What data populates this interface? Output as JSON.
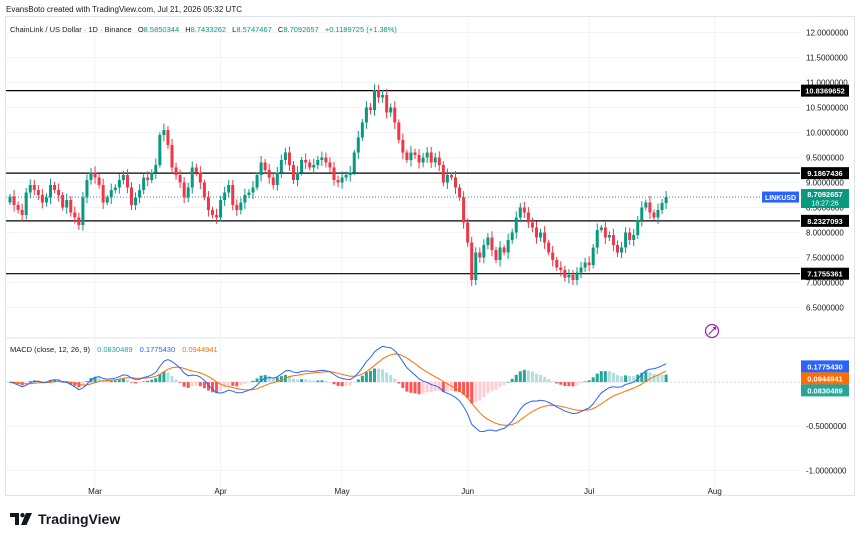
{
  "header": {
    "credit": "EvansBoto created with TradingView.com, Jul 21, 2026 05:32 UTC"
  },
  "legend": {
    "symbol": "ChainLink / US Dollar · 1D · Binance",
    "o_label": "O",
    "o": "8.5850344",
    "h_label": "H",
    "h": "8.7433262",
    "l_label": "L",
    "l": "8.5747467",
    "c_label": "C",
    "c": "8.7092657",
    "change": "+0.1189725 (+1.38%)"
  },
  "macd_legend": {
    "label": "MACD (close, 12, 26, 9)",
    "v1": "0.0830489",
    "v2": "0.1775430",
    "v3": "0.0944941"
  },
  "footer": {
    "brand": "TradingView"
  },
  "colors": {
    "up": "#089981",
    "down": "#f23645",
    "macd": "#2962ff",
    "signal": "#ff6d00",
    "hist_up_strong": "#26a69a",
    "hist_up_weak": "#b2dfdb",
    "hist_down_strong": "#ff5252",
    "hist_down_weak": "#ffcdd2",
    "current": "#2962ff",
    "level": "#000000"
  },
  "chart_data": [
    {
      "type": "candlestick",
      "title": "ChainLink / US Dollar · 1D · Binance",
      "ylim": [
        6.25,
        12.25
      ],
      "y_ticks": [
        "12.0000000",
        "11.5000000",
        "11.0000000",
        "10.5000000",
        "10.0000000",
        "9.5000000",
        "9.0000000",
        "8.5000000",
        "8.0000000",
        "7.5000000",
        "7.0000000",
        "6.5000000"
      ],
      "y_tick_values": [
        12.0,
        11.5,
        11.0,
        10.5,
        10.0,
        9.5,
        9.0,
        8.5,
        8.0,
        7.5,
        7.0,
        6.5
      ],
      "x_ticks": [
        "Mar",
        "Apr",
        "May",
        "Jun",
        "Jul",
        "Aug"
      ],
      "x_tick_days": [
        21,
        52,
        82,
        113,
        143,
        174
      ],
      "horizontal_levels": [
        {
          "label": "10.8369652",
          "value": 10.837
        },
        {
          "label": "9.1867436",
          "value": 9.187
        },
        {
          "label": "8.2327093",
          "value": 8.233
        },
        {
          "label": "7.1755361",
          "value": 7.176
        }
      ],
      "current_price": {
        "symbol": "LINKUSD",
        "label": "8.7092657",
        "countdown": "18:27:26",
        "value": 8.709
      },
      "close": [
        8.72,
        8.55,
        8.45,
        8.35,
        8.8,
        8.95,
        8.85,
        8.75,
        8.6,
        8.7,
        8.95,
        8.85,
        8.75,
        8.5,
        8.65,
        8.4,
        8.3,
        8.15,
        8.7,
        9.05,
        9.2,
        9.1,
        8.95,
        8.6,
        8.7,
        8.85,
        8.9,
        9.05,
        9.15,
        8.9,
        8.55,
        8.7,
        8.85,
        9.1,
        9.05,
        9.2,
        9.35,
        9.95,
        10.05,
        9.75,
        9.3,
        9.15,
        9.0,
        8.7,
        8.9,
        9.3,
        9.2,
        9.0,
        8.7,
        8.45,
        8.35,
        8.3,
        8.65,
        8.8,
        8.95,
        8.55,
        8.45,
        8.6,
        8.75,
        8.8,
        8.9,
        9.15,
        9.4,
        9.25,
        9.1,
        8.95,
        9.2,
        9.45,
        9.6,
        9.35,
        9.05,
        9.2,
        9.45,
        9.4,
        9.3,
        9.35,
        9.45,
        9.5,
        9.4,
        9.3,
        9.05,
        9.0,
        9.1,
        9.15,
        9.2,
        9.6,
        9.9,
        10.2,
        10.5,
        10.45,
        10.85,
        10.7,
        10.75,
        10.4,
        10.5,
        10.2,
        9.85,
        9.6,
        9.45,
        9.6,
        9.55,
        9.4,
        9.5,
        9.6,
        9.4,
        9.5,
        9.35,
        9.0,
        9.15,
        9.1,
        8.9,
        8.7,
        8.2,
        7.8,
        7.05,
        7.6,
        7.5,
        7.75,
        7.9,
        7.65,
        7.45,
        7.7,
        7.6,
        7.85,
        8.0,
        8.3,
        8.5,
        8.4,
        8.2,
        8.1,
        7.9,
        8.0,
        7.8,
        7.6,
        7.45,
        7.3,
        7.25,
        7.1,
        7.15,
        7.05,
        7.2,
        7.3,
        7.4,
        7.35,
        7.7,
        8.05,
        8.1,
        7.9,
        7.95,
        7.75,
        7.6,
        7.7,
        8.0,
        7.85,
        7.95,
        8.25,
        8.5,
        8.6,
        8.4,
        8.3,
        8.45,
        8.59,
        8.71
      ]
    },
    {
      "type": "macd",
      "title": "MACD (close, 12, 26, 9)",
      "ylim": [
        -1.2,
        0.42
      ],
      "y_ticks": [
        "0.1775430",
        "0.0944941",
        "0.0830489",
        "0.0000000",
        "-0.5000000",
        "-1.0000000"
      ],
      "y_tick_values": [
        0.177543,
        0.0944941,
        0.0830489,
        0.0,
        -0.5,
        -1.0
      ],
      "series": [
        {
          "name": "MACD",
          "value": "0.1775430"
        },
        {
          "name": "Signal",
          "value": "0.0944941"
        },
        {
          "name": "Histogram",
          "value": "0.0830489"
        }
      ]
    }
  ]
}
